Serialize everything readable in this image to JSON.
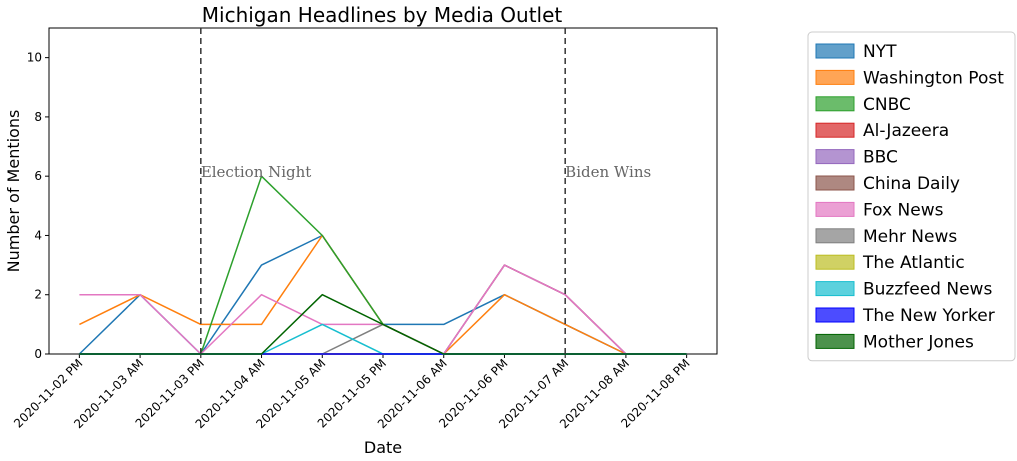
{
  "chart_data": {
    "type": "line",
    "title": "Michigan Headlines by Media Outlet",
    "xlabel": "Date",
    "ylabel": "Number of Mentions",
    "x": [
      "2020-11-02 PM",
      "2020-11-03 AM",
      "2020-11-03 PM",
      "2020-11-04 AM",
      "2020-11-05 AM",
      "2020-11-05 PM",
      "2020-11-06 AM",
      "2020-11-06 PM",
      "2020-11-07 AM",
      "2020-11-08 AM",
      "2020-11-08 PM"
    ],
    "ylim": [
      0,
      11
    ],
    "yticks": [
      0,
      2,
      4,
      6,
      8,
      10
    ],
    "grid": false,
    "legend_position": "outside-right",
    "annotations": [
      {
        "label": "Election Night",
        "x_index": 2
      },
      {
        "label": "Biden Wins",
        "x_index": 8
      }
    ],
    "series": [
      {
        "name": "NYT",
        "color": "#1f77b4",
        "values": [
          0,
          2,
          0,
          3,
          4,
          1,
          1,
          2,
          1,
          0,
          0
        ]
      },
      {
        "name": "Washington Post",
        "color": "#ff7f0e",
        "values": [
          1,
          2,
          1,
          1,
          4,
          1,
          0,
          2,
          1,
          0,
          0
        ]
      },
      {
        "name": "CNBC",
        "color": "#2ca02c",
        "values": [
          0,
          0,
          0,
          6,
          4,
          1,
          0,
          0,
          0,
          0,
          0
        ]
      },
      {
        "name": "Al-Jazeera",
        "color": "#d62728",
        "values": [
          0,
          0,
          0,
          0,
          0,
          0,
          0,
          0,
          0,
          0,
          0
        ]
      },
      {
        "name": "BBC",
        "color": "#9467bd",
        "values": [
          0,
          0,
          0,
          0,
          0,
          0,
          0,
          3,
          2,
          0,
          0
        ]
      },
      {
        "name": "China Daily",
        "color": "#8c564b",
        "values": [
          0,
          0,
          0,
          0,
          0,
          0,
          0,
          3,
          2,
          0,
          0
        ]
      },
      {
        "name": "Fox News",
        "color": "#e377c2",
        "values": [
          2,
          2,
          0,
          2,
          1,
          1,
          0,
          3,
          2,
          0,
          0
        ]
      },
      {
        "name": "Mehr News",
        "color": "#7f7f7f",
        "values": [
          0,
          0,
          0,
          0,
          0,
          1,
          0,
          0,
          0,
          0,
          0
        ]
      },
      {
        "name": "The Atlantic",
        "color": "#bcbd22",
        "values": [
          0,
          0,
          0,
          0,
          0,
          0,
          0,
          0,
          0,
          0,
          0
        ]
      },
      {
        "name": "Buzzfeed News",
        "color": "#17becf",
        "values": [
          0,
          0,
          0,
          0,
          1,
          0,
          0,
          0,
          0,
          0,
          0
        ]
      },
      {
        "name": "The New Yorker",
        "color": "#0000ff",
        "values": [
          0,
          0,
          0,
          0,
          0,
          0,
          0,
          0,
          0,
          0,
          0
        ]
      },
      {
        "name": "Mother Jones",
        "color": "#006400",
        "values": [
          0,
          0,
          0,
          0,
          2,
          1,
          0,
          0,
          0,
          0,
          0
        ]
      }
    ]
  }
}
